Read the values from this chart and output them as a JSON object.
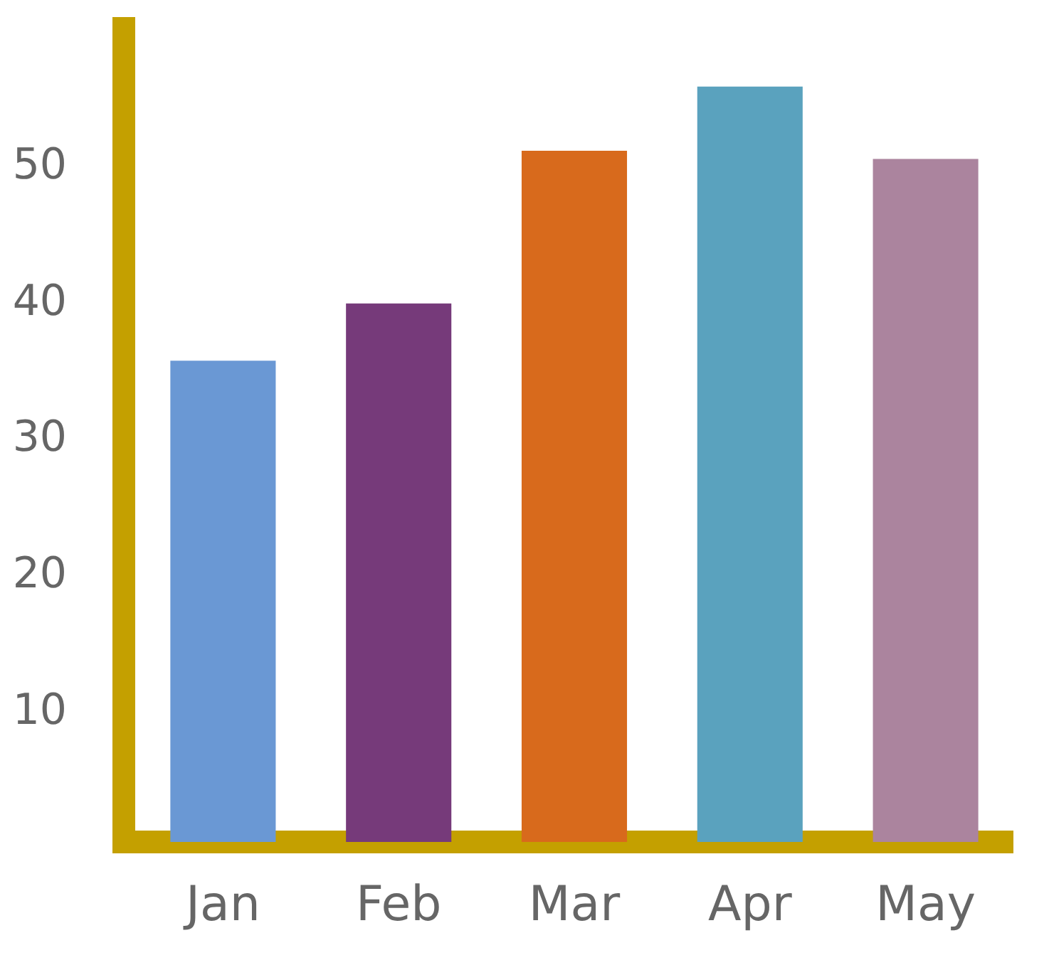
{
  "chart_data": {
    "type": "bar",
    "categories": [
      "Jan",
      "Feb",
      "Mar",
      "Apr",
      "May"
    ],
    "values": [
      35.3,
      39.5,
      50.7,
      55.4,
      50.1
    ],
    "colors": [
      "#6a98d4",
      "#763a7a",
      "#d86a1c",
      "#5aa2be",
      "#ab849e"
    ],
    "ylim": [
      0,
      60.5
    ],
    "yticks": [
      10,
      20,
      30,
      40,
      50
    ],
    "grid": false
  }
}
